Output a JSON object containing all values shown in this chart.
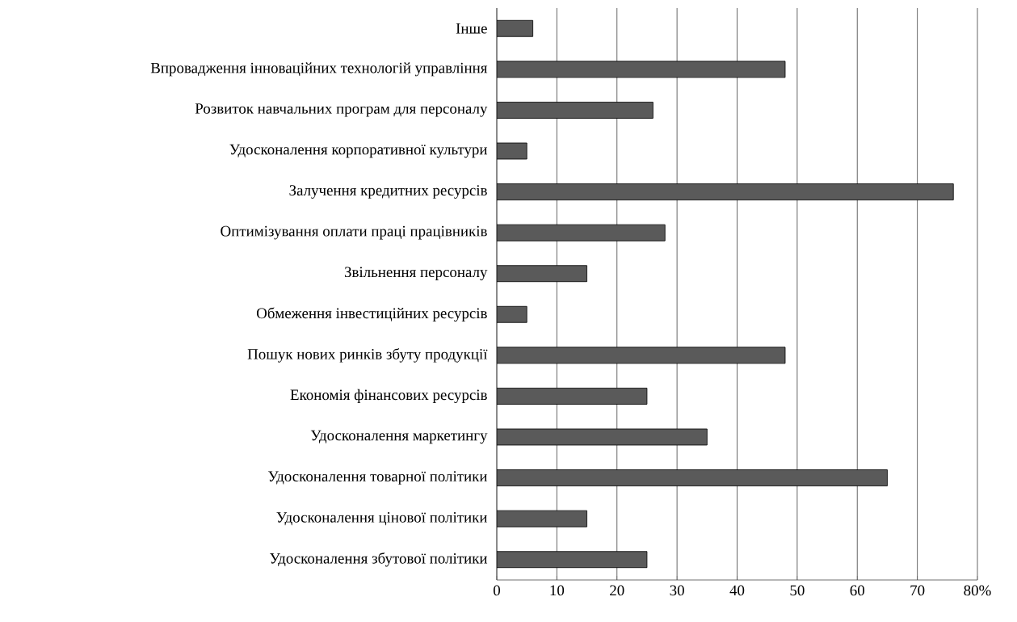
{
  "chart_data": {
    "type": "bar",
    "orientation": "horizontal",
    "categories": [
      "Інше",
      "Впровадження інноваційних технологій управління",
      "Розвиток навчальних програм для персоналу",
      "Удосконалення корпоративної культури",
      "Залучення кредитних ресурсів",
      "Оптимізування оплати праці працівників",
      "Звільнення персоналу",
      "Обмеження інвестиційних ресурсів",
      "Пошук нових ринків збуту продукції",
      "Економія фінансових ресурсів",
      "Удосконалення маркетингу",
      "Удосконалення товарної політики",
      "Удосконалення цінової політики",
      "Удосконалення збутової політики"
    ],
    "values": [
      6,
      48,
      26,
      5,
      76,
      28,
      15,
      5,
      48,
      25,
      35,
      65,
      15,
      25
    ],
    "color": "#5a5a5a",
    "xlim": [
      0,
      80
    ],
    "xticks": [
      0,
      10,
      20,
      30,
      40,
      50,
      60,
      70,
      {
        "value": 80,
        "label": "80%"
      }
    ],
    "grid": "x"
  }
}
